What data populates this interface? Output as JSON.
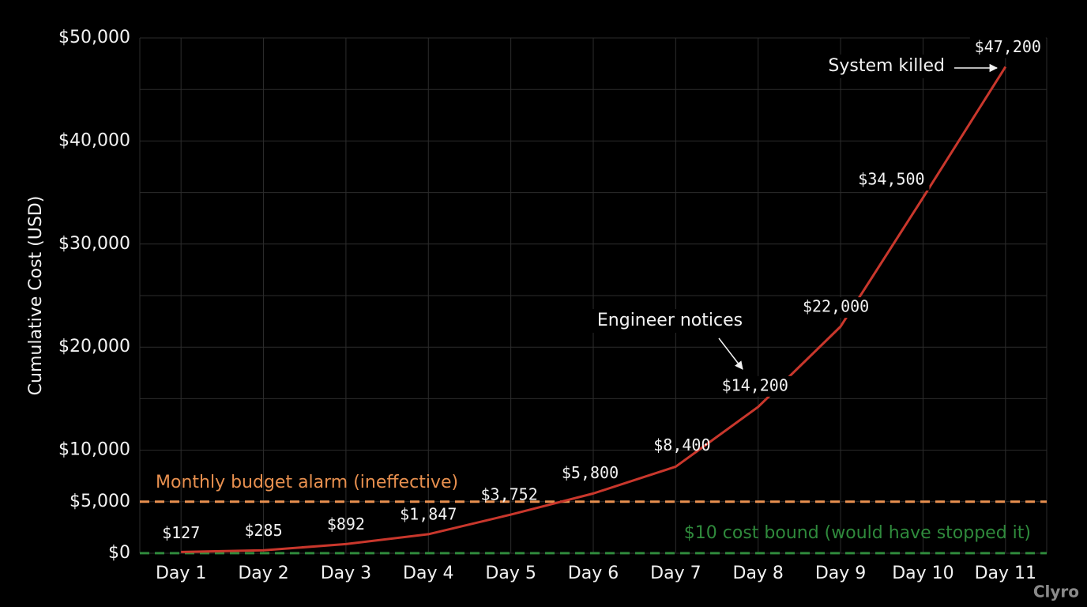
{
  "chart_data": {
    "type": "line",
    "y_label": "Cumulative Cost (USD)",
    "categories": [
      "Day 1",
      "Day 2",
      "Day 3",
      "Day 4",
      "Day 5",
      "Day 6",
      "Day 7",
      "Day 8",
      "Day 9",
      "Day 10",
      "Day 11"
    ],
    "series": [
      {
        "color": "#c9372c",
        "values": [
          127,
          285,
          892,
          1847,
          3752,
          5800,
          8400,
          14200,
          22000,
          34500,
          47200
        ],
        "value_labels": [
          "$127",
          "$285",
          "$892",
          "$1,847",
          "$3,752",
          "$5,800",
          "$8,400",
          "$14,200",
          "$22,000",
          "$34,500",
          "$47,200"
        ]
      }
    ],
    "ylim": [
      0,
      50000
    ],
    "yticks": [
      {
        "value": 0,
        "label": "$0"
      },
      {
        "value": 5000,
        "label": "$5,000"
      },
      {
        "value": 10000,
        "label": "$10,000"
      },
      {
        "value": 20000,
        "label": "$20,000"
      },
      {
        "value": 30000,
        "label": "$30,000"
      },
      {
        "value": 40000,
        "label": "$40,000"
      },
      {
        "value": 50000,
        "label": "$50,000"
      }
    ],
    "minor_yticks": [
      15000,
      25000,
      35000,
      45000
    ],
    "grid": true,
    "reference_lines": [
      {
        "value": 5000,
        "label": "Monthly budget alarm (ineffective)",
        "color": "#e8904f"
      },
      {
        "value": 10,
        "label": "$10 cost bound (would have stopped it)",
        "color": "#2f8a3c"
      }
    ],
    "annotations": [
      {
        "text": "Engineer notices",
        "category": 7
      },
      {
        "text": "System killed",
        "category": 10
      }
    ],
    "watermark": "Clyro"
  }
}
